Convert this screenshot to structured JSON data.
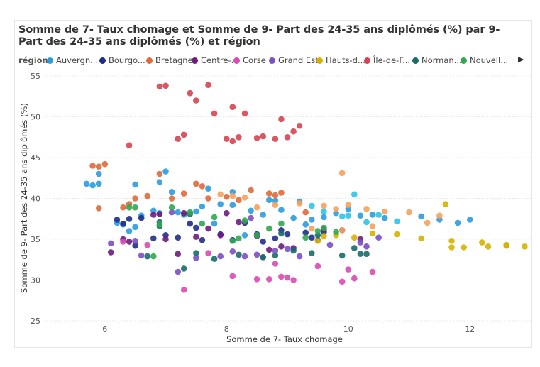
{
  "chart_data": {
    "type": "scatter",
    "title": "Somme de 7- Taux chomage et Somme de 9- Part des 24-35 ans diplômés (%) par 9- Part des 24-35 ans diplômés (%) et région",
    "xlabel": "Somme de 7- Taux chomage",
    "ylabel": "Somme de 9- Part des 24-35 ans diplômés (%)",
    "xlim": [
      5,
      13
    ],
    "ylim": [
      25,
      55
    ],
    "x_ticks": [
      "6",
      "8",
      "10",
      "12"
    ],
    "y_ticks": [
      "25",
      "30",
      "35",
      "40",
      "45",
      "50",
      "55"
    ],
    "grid": true,
    "legend_title": "région",
    "legend_position": "top",
    "series": [
      {
        "name": "Auvergn...",
        "color": "#2b9be0",
        "points": [
          [
            5.7,
            41.8
          ],
          [
            5.8,
            41.6
          ],
          [
            5.9,
            41.8
          ],
          [
            5.9,
            43
          ],
          [
            6.2,
            37
          ],
          [
            6.3,
            36.8
          ],
          [
            6.4,
            36
          ],
          [
            6.5,
            36.5
          ],
          [
            6.6,
            37.9
          ],
          [
            6.8,
            38.5
          ],
          [
            6.9,
            42
          ],
          [
            7,
            43.3
          ],
          [
            7.1,
            40.8
          ],
          [
            7.2,
            38.3
          ],
          [
            7.3,
            38
          ],
          [
            7.5,
            38.4
          ],
          [
            7.6,
            39
          ],
          [
            7.7,
            41.2
          ],
          [
            7.9,
            39.3
          ],
          [
            8.1,
            40.8
          ],
          [
            8.1,
            39.2
          ],
          [
            8.4,
            38.5
          ],
          [
            8.6,
            38
          ],
          [
            8.7,
            39.8
          ],
          [
            8.8,
            39.7
          ],
          [
            8.9,
            38.6
          ],
          [
            9.1,
            37.6
          ],
          [
            9.2,
            39.6
          ],
          [
            9.4,
            37.4
          ],
          [
            9.6,
            37.7
          ],
          [
            9.8,
            38.2
          ],
          [
            10,
            38.7
          ],
          [
            10.2,
            37.9
          ],
          [
            10.4,
            38
          ],
          [
            10.6,
            37.6
          ],
          [
            11.2,
            37.8
          ],
          [
            11.5,
            37.4
          ],
          [
            11.8,
            37
          ],
          [
            12,
            37.4
          ],
          [
            6.5,
            41.7
          ],
          [
            6.9,
            38.2
          ],
          [
            7.8,
            36.9
          ],
          [
            8.3,
            35.5
          ],
          [
            9.3,
            36.8
          ]
        ]
      },
      {
        "name": "Bourgo...",
        "color": "#1f2d8a",
        "points": [
          [
            6.2,
            37.4
          ],
          [
            6.3,
            36.9
          ],
          [
            6.4,
            37.5
          ],
          [
            6.5,
            34.2
          ],
          [
            6.6,
            37.6
          ],
          [
            6.8,
            35.1
          ],
          [
            7,
            35.5
          ],
          [
            7.2,
            35.2
          ],
          [
            7.4,
            36.9
          ],
          [
            7.5,
            36.4
          ],
          [
            7.6,
            34.9
          ],
          [
            7.9,
            35.6
          ],
          [
            8.1,
            34.9
          ],
          [
            8.3,
            37
          ],
          [
            8.5,
            35.6
          ],
          [
            8.8,
            35.1
          ],
          [
            8.9,
            36.1
          ],
          [
            9,
            35.6
          ],
          [
            9.3,
            35.8
          ],
          [
            9.4,
            35.2
          ],
          [
            9.6,
            35.9
          ],
          [
            8.6,
            34.7
          ]
        ]
      },
      {
        "name": "Bretagne",
        "color": "#e0693a",
        "points": [
          [
            5.8,
            44
          ],
          [
            5.9,
            43.9
          ],
          [
            6,
            44.2
          ],
          [
            5.9,
            38.8
          ],
          [
            6.3,
            38.9
          ],
          [
            6.4,
            39.3
          ],
          [
            6.5,
            40
          ],
          [
            6.7,
            40.3
          ],
          [
            6.9,
            43
          ],
          [
            7.1,
            40
          ],
          [
            7.3,
            40.6
          ],
          [
            7.5,
            41.8
          ],
          [
            7.6,
            41.5
          ],
          [
            7.7,
            40
          ],
          [
            8,
            40.2
          ],
          [
            8.2,
            39.8
          ],
          [
            8.4,
            41
          ],
          [
            8.7,
            40.6
          ],
          [
            8.8,
            40.4
          ],
          [
            8.9,
            40.7
          ],
          [
            9.3,
            38.3
          ]
        ]
      },
      {
        "name": "Centre-...",
        "color": "#6e1b7e",
        "points": [
          [
            6.1,
            33.4
          ],
          [
            6.3,
            35
          ],
          [
            6.4,
            34.7
          ],
          [
            6.8,
            38
          ],
          [
            6.9,
            38.1
          ],
          [
            7,
            35
          ],
          [
            7.3,
            38.2
          ],
          [
            7.5,
            35.3
          ],
          [
            7.7,
            36.3
          ],
          [
            7.9,
            35.5
          ],
          [
            8,
            38.2
          ],
          [
            8.2,
            37.1
          ],
          [
            8.5,
            35.4
          ],
          [
            8.7,
            33.7
          ],
          [
            8.9,
            34.1
          ],
          [
            9.1,
            33.9
          ],
          [
            9.6,
            36.2
          ],
          [
            9.9,
            36.1
          ],
          [
            10.2,
            35
          ],
          [
            7.2,
            33.2
          ]
        ]
      },
      {
        "name": "Corse",
        "color": "#d94ab3",
        "points": [
          [
            6.3,
            34.7
          ],
          [
            6.7,
            34.3
          ],
          [
            7.3,
            28.8
          ],
          [
            7.7,
            33.3
          ],
          [
            8.1,
            30.5
          ],
          [
            8.5,
            30.1
          ],
          [
            8.7,
            30.1
          ],
          [
            8.8,
            32
          ],
          [
            8.9,
            30.4
          ],
          [
            9,
            30.3
          ],
          [
            9.1,
            30
          ],
          [
            9.5,
            31.7
          ],
          [
            9.9,
            29.8
          ],
          [
            10,
            31.3
          ],
          [
            10.1,
            30.2
          ],
          [
            10.4,
            31
          ]
        ]
      },
      {
        "name": "Grand Est",
        "color": "#7b4fc4",
        "points": [
          [
            6.1,
            34.5
          ],
          [
            6.5,
            34.8
          ],
          [
            6.6,
            33
          ],
          [
            7.1,
            38.3
          ],
          [
            7.2,
            31
          ],
          [
            7.5,
            32.7
          ],
          [
            7.9,
            32.9
          ],
          [
            8.1,
            33.5
          ],
          [
            8.3,
            32.9
          ],
          [
            8.5,
            33.1
          ],
          [
            8.6,
            32.8
          ],
          [
            8.8,
            33.6
          ],
          [
            9,
            33.8
          ],
          [
            9.2,
            32.9
          ],
          [
            9.5,
            34.9
          ],
          [
            9.7,
            34.3
          ],
          [
            10.2,
            34.6
          ],
          [
            10.3,
            34.1
          ],
          [
            10.5,
            35.2
          ],
          [
            8.4,
            37.6
          ]
        ]
      },
      {
        "name": "Hauts-d...",
        "color": "#d4b400",
        "points": [
          [
            9.8,
            35.5
          ],
          [
            10.1,
            35.2
          ],
          [
            10.4,
            35.7
          ],
          [
            10.8,
            35.6
          ],
          [
            11.2,
            35.1
          ],
          [
            11.6,
            39.3
          ],
          [
            11.7,
            34.8
          ],
          [
            11.9,
            34
          ],
          [
            12.2,
            34.6
          ],
          [
            12.3,
            34.1
          ],
          [
            12.6,
            34.3
          ],
          [
            12.9,
            34.1
          ],
          [
            11.7,
            34
          ],
          [
            12.6,
            34.2
          ],
          [
            9.5,
            34.8
          ],
          [
            9.6,
            35.4
          ]
        ]
      },
      {
        "name": "Île-de-F...",
        "color": "#d64452",
        "points": [
          [
            6.4,
            46.5
          ],
          [
            6.9,
            53.7
          ],
          [
            7,
            53.8
          ],
          [
            7.2,
            47.3
          ],
          [
            7.3,
            47.8
          ],
          [
            7.4,
            52.9
          ],
          [
            7.5,
            52
          ],
          [
            7.7,
            53.9
          ],
          [
            7.8,
            50.4
          ],
          [
            8,
            47.3
          ],
          [
            8.1,
            47
          ],
          [
            8.1,
            51.2
          ],
          [
            8.2,
            47.5
          ],
          [
            8.3,
            50.4
          ],
          [
            8.5,
            47.4
          ],
          [
            8.6,
            47.6
          ],
          [
            8.8,
            47.3
          ],
          [
            8.9,
            49.7
          ],
          [
            9,
            47.5
          ],
          [
            9.1,
            48.2
          ],
          [
            9.2,
            48.9
          ]
        ]
      },
      {
        "name": "Norman...",
        "color": "#1a6b6b",
        "points": [
          [
            6.7,
            32.9
          ],
          [
            6.9,
            36.6
          ],
          [
            7.3,
            31.4
          ],
          [
            7.5,
            33.3
          ],
          [
            7.8,
            32.6
          ],
          [
            8.2,
            33.1
          ],
          [
            8.6,
            32.8
          ],
          [
            8.8,
            33
          ],
          [
            9.1,
            33.6
          ],
          [
            9.4,
            33.3
          ],
          [
            9.5,
            35.5
          ],
          [
            9.9,
            33
          ],
          [
            10.1,
            33.9
          ],
          [
            10.2,
            33.2
          ],
          [
            10.3,
            33.2
          ],
          [
            6.9,
            37.1
          ],
          [
            7.4,
            38.1
          ],
          [
            8.9,
            35.7
          ]
        ]
      },
      {
        "name": "Nouvell...",
        "color": "#2fa84f",
        "points": [
          [
            6.4,
            38.9
          ],
          [
            6.5,
            38.9
          ],
          [
            6.8,
            32.9
          ],
          [
            6.9,
            36.8
          ],
          [
            7.1,
            38.9
          ],
          [
            7.4,
            38.3
          ],
          [
            7.6,
            36.9
          ],
          [
            7.8,
            37.7
          ],
          [
            8.1,
            34.8
          ],
          [
            8.2,
            35.1
          ],
          [
            8.3,
            37.3
          ],
          [
            8.5,
            35.5
          ],
          [
            8.7,
            36.3
          ],
          [
            8.9,
            36.9
          ],
          [
            9.3,
            35.2
          ],
          [
            9.6,
            36.4
          ],
          [
            9.8,
            35.9
          ],
          [
            9.5,
            36
          ]
        ]
      },
      {
        "name": "",
        "color": "#f5a25c",
        "points": [
          [
            7.9,
            40.5
          ],
          [
            8.1,
            40.3
          ],
          [
            8.3,
            40.1
          ],
          [
            8.5,
            38.9
          ],
          [
            8.8,
            39.2
          ],
          [
            9.2,
            39.4
          ],
          [
            9.6,
            39.1
          ],
          [
            9.8,
            38.7
          ],
          [
            9.9,
            43.1
          ],
          [
            10,
            39.2
          ],
          [
            10.3,
            38.7
          ],
          [
            10.6,
            38.4
          ],
          [
            11,
            38.3
          ],
          [
            11.3,
            37
          ],
          [
            11.5,
            37.9
          ],
          [
            10.4,
            36.6
          ],
          [
            9.4,
            36.3
          ],
          [
            9.9,
            36.1
          ]
        ]
      },
      {
        "name": "",
        "color": "#2ec4e8",
        "points": [
          [
            9.4,
            39.1
          ],
          [
            9.6,
            38.4
          ],
          [
            9.9,
            37.8
          ],
          [
            10,
            37.9
          ],
          [
            10.1,
            40.5
          ],
          [
            10.3,
            37.1
          ],
          [
            10.5,
            38
          ],
          [
            10.8,
            37.2
          ]
        ]
      }
    ]
  },
  "legend": {
    "title": "région",
    "items": [
      {
        "label": "Auvergn...",
        "color": "#2b9be0"
      },
      {
        "label": "Bourgo...",
        "color": "#1f2d8a"
      },
      {
        "label": "Bretagne",
        "color": "#e0693a"
      },
      {
        "label": "Centre-...",
        "color": "#6e1b7e"
      },
      {
        "label": "Corse",
        "color": "#d94ab3"
      },
      {
        "label": "Grand Est",
        "color": "#7b4fc4"
      },
      {
        "label": "Hauts-d...",
        "color": "#d4b400"
      },
      {
        "label": "Île-de-F...",
        "color": "#d64452"
      },
      {
        "label": "Norman...",
        "color": "#1a6b6b"
      },
      {
        "label": "Nouvell...",
        "color": "#2fa84f"
      }
    ],
    "more_icon": "caret-right-icon"
  }
}
